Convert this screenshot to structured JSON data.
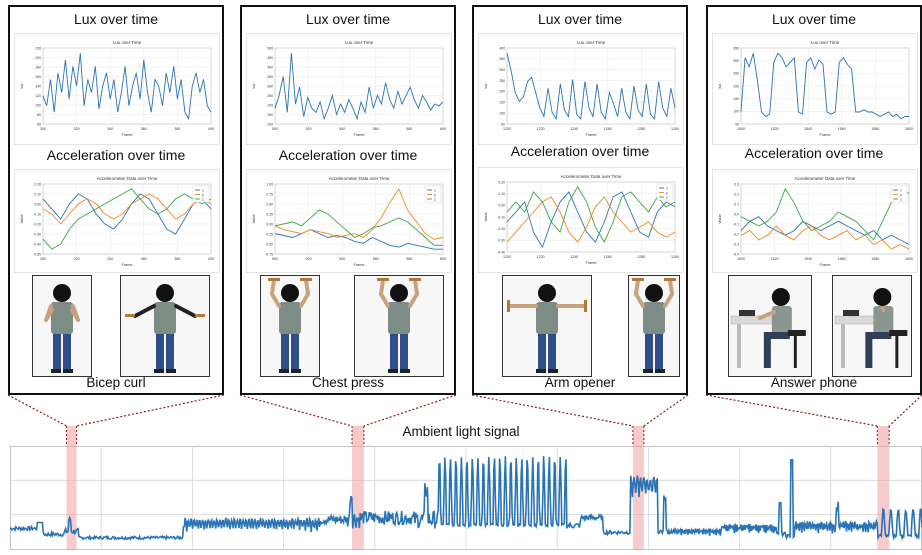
{
  "colors": {
    "line": "#2a74b5",
    "acc_x": "#2a74b5",
    "acc_y": "#f08a24",
    "acc_z": "#3aa64a",
    "highlight": "#f3a2a2",
    "connector": "#8b1a1a"
  },
  "panels": [
    {
      "lux_title": "Lux over time",
      "acc_title": "Acceleration over time",
      "label": "Bicep curl",
      "lux_chart": {
        "subtitle": "Lux over Time",
        "xlabel": "Frame",
        "ylabel": "lux",
        "xticks": [
          "300",
          "320",
          "340",
          "360",
          "380",
          "400"
        ],
        "yticks": [
          "220",
          "200",
          "180",
          "160",
          "140",
          "120",
          "100",
          "80",
          "60"
        ],
        "values": [
          115,
          100,
          140,
          90,
          150,
          120,
          170,
          110,
          160,
          130,
          180,
          100,
          140,
          120,
          160,
          95,
          130,
          150,
          110,
          140,
          90,
          120,
          160,
          100,
          130,
          150,
          110,
          170,
          120,
          90,
          140,
          130,
          100,
          150,
          120,
          160,
          110,
          140,
          90,
          80,
          130,
          150,
          120,
          140,
          100,
          90
        ]
      },
      "acc_chart": {
        "subtitle": "Accelerometer Data over Time",
        "xlabel": "Frame",
        "ylabel": "Value",
        "legend": [
          "x",
          "y",
          "z"
        ],
        "xticks": [
          "300",
          "320",
          "340",
          "360",
          "380",
          "400"
        ],
        "yticks": [
          "0.20",
          "0.10",
          "0.00",
          "-0.10",
          "-0.20",
          "-0.30",
          "-0.40",
          "-0.50"
        ],
        "x": [
          0.1,
          0.0,
          -0.1,
          0.05,
          0.15,
          0.1,
          -0.05,
          -0.15,
          -0.2,
          -0.1,
          0.05,
          0.15,
          0.1,
          -0.05,
          -0.2,
          -0.25,
          -0.1,
          0.05,
          0.1,
          0.0
        ],
        "y": [
          0.0,
          -0.05,
          -0.15,
          -0.05,
          0.05,
          0.1,
          0.05,
          -0.05,
          -0.1,
          -0.05,
          0.05,
          0.1,
          0.15,
          0.1,
          0.0,
          -0.1,
          -0.05,
          0.05,
          0.1,
          0.05
        ],
        "z": [
          -0.3,
          -0.4,
          -0.35,
          -0.2,
          -0.1,
          -0.05,
          0.0,
          0.05,
          0.1,
          0.15,
          0.2,
          0.1,
          0.0,
          -0.05,
          0.0,
          0.1,
          0.15,
          0.1,
          0.05,
          0.1
        ]
      }
    },
    {
      "lux_title": "Lux over time",
      "acc_title": "Acceleration over time",
      "label": "Chest press",
      "lux_chart": {
        "subtitle": "Lux over Time",
        "xlabel": "Frame",
        "ylabel": "lux",
        "xticks": [
          "500",
          "520",
          "540",
          "560",
          "580",
          "600"
        ],
        "yticks": [
          "500",
          "450",
          "400",
          "350",
          "300",
          "250",
          "200",
          "150",
          "100"
        ],
        "values": [
          200,
          260,
          350,
          180,
          460,
          220,
          300,
          160,
          250,
          200,
          180,
          230,
          150,
          200,
          260,
          170,
          220,
          180,
          240,
          200,
          150,
          230,
          180,
          300,
          200,
          260,
          220,
          320,
          240,
          200,
          280,
          220,
          260,
          300,
          240,
          200,
          260,
          230,
          190,
          220,
          210,
          230
        ]
      },
      "acc_chart": {
        "subtitle": "Accelerometer Data over Time",
        "xlabel": "Frame",
        "ylabel": "Value",
        "legend": [
          "x",
          "y",
          "z"
        ],
        "xticks": [
          "500",
          "520",
          "540",
          "560",
          "580",
          "600"
        ],
        "yticks": [
          "1.00",
          "0.75",
          "0.50",
          "0.25",
          "0.00",
          "-0.25",
          "-0.50",
          "-0.75"
        ],
        "x": [
          -0.2,
          -0.25,
          -0.3,
          -0.2,
          -0.1,
          -0.2,
          -0.3,
          -0.25,
          -0.3,
          -0.4,
          -0.45,
          -0.3,
          -0.4,
          -0.5,
          -0.55,
          -0.45,
          -0.5,
          -0.55,
          -0.6,
          -0.6
        ],
        "y": [
          0.0,
          -0.1,
          -0.15,
          -0.2,
          -0.1,
          -0.15,
          -0.2,
          -0.3,
          -0.25,
          -0.2,
          -0.3,
          -0.1,
          0.2,
          0.6,
          0.95,
          0.4,
          0.1,
          -0.2,
          -0.35,
          -0.3
        ],
        "z": [
          0.0,
          0.05,
          0.1,
          0.0,
          0.2,
          0.4,
          0.3,
          0.1,
          -0.1,
          -0.3,
          -0.2,
          -0.05,
          0.0,
          0.1,
          0.2,
          0.1,
          -0.1,
          -0.3,
          -0.5,
          -0.5
        ]
      }
    },
    {
      "lux_title": "Lux over time",
      "acc_title": "Acceleration over time",
      "label": "Arm opener",
      "lux_chart": {
        "subtitle": "Lux over Time",
        "xlabel": "Frame",
        "ylabel": "lux",
        "xticks": [
          "1200",
          "1220",
          "1240",
          "1260",
          "1280",
          "1300"
        ],
        "yticks": [
          "400",
          "350",
          "300",
          "250",
          "200",
          "150",
          "100",
          "50"
        ],
        "values": [
          380,
          300,
          200,
          160,
          180,
          250,
          270,
          200,
          130,
          90,
          220,
          110,
          80,
          240,
          120,
          90,
          260,
          100,
          80,
          250,
          130,
          90,
          240,
          110,
          80,
          200,
          150,
          90,
          220,
          110,
          80,
          230,
          120,
          90,
          240,
          100,
          80,
          250,
          130,
          90,
          220,
          130
        ]
      },
      "acc_chart": {
        "subtitle": "Accelerometer Data over Time",
        "xlabel": "Frame",
        "ylabel": "Value",
        "legend": [
          "x",
          "y",
          "z"
        ],
        "xticks": [
          "1200",
          "1220",
          "1240",
          "1260",
          "1280",
          "1300"
        ],
        "yticks": [
          "0.20",
          "0.10",
          "0.00",
          "-0.10",
          "-0.20",
          "-0.30",
          "-0.40"
        ],
        "x": [
          -0.1,
          0.0,
          0.1,
          -0.2,
          -0.35,
          -0.1,
          0.1,
          0.2,
          0.0,
          -0.2,
          -0.3,
          -0.1,
          0.15,
          0.2,
          0.0,
          -0.2,
          -0.25,
          0.0,
          0.1,
          0.05
        ],
        "y": [
          -0.3,
          -0.2,
          -0.1,
          0.0,
          0.1,
          0.15,
          0.0,
          -0.2,
          -0.3,
          -0.15,
          0.05,
          0.15,
          0.0,
          -0.1,
          -0.2,
          -0.15,
          -0.1,
          -0.2,
          -0.25,
          -0.2
        ],
        "z": [
          0.0,
          0.1,
          0.0,
          0.2,
          0.1,
          -0.1,
          -0.2,
          0.1,
          0.25,
          0.1,
          -0.15,
          -0.3,
          -0.1,
          0.15,
          0.2,
          0.1,
          0.0,
          0.15,
          0.05,
          0.1
        ]
      }
    },
    {
      "lux_title": "Lux over time",
      "acc_title": "Acceleration over time",
      "label": "Answer phone",
      "lux_chart": {
        "subtitle": "Lux over Time",
        "xlabel": "Frame",
        "ylabel": "lux",
        "xticks": [
          "1500",
          "1520",
          "1540",
          "1560",
          "1580",
          "1600"
        ],
        "yticks": [
          "350",
          "300",
          "250",
          "200",
          "150",
          "100",
          "50"
        ],
        "values": [
          60,
          300,
          260,
          320,
          200,
          60,
          40,
          50,
          280,
          320,
          300,
          260,
          280,
          300,
          60,
          50,
          280,
          300,
          250,
          290,
          270,
          60,
          50,
          60,
          280,
          300,
          270,
          250,
          60,
          60,
          70,
          60,
          60,
          50,
          40,
          50,
          60,
          40,
          50,
          30,
          40,
          40
        ]
      },
      "acc_chart": {
        "subtitle": "Accelerometer Data over Time",
        "xlabel": "Frame",
        "ylabel": "Value",
        "legend": [
          "x",
          "y",
          "z"
        ],
        "xticks": [
          "1500",
          "1520",
          "1540",
          "1560",
          "1580",
          "1600"
        ],
        "yticks": [
          "0.3",
          "0.2",
          "0.1",
          "0.0",
          "-0.1",
          "-0.2",
          "-0.3",
          "-0.4"
        ],
        "x": [
          -0.1,
          0.0,
          0.05,
          -0.05,
          -0.1,
          -0.15,
          -0.1,
          0.0,
          -0.05,
          -0.1,
          -0.05,
          0.0,
          -0.05,
          -0.1,
          -0.15,
          -0.1,
          -0.2,
          -0.15,
          -0.2,
          -0.25
        ],
        "y": [
          -0.15,
          -0.1,
          -0.2,
          -0.15,
          -0.05,
          -0.15,
          -0.2,
          -0.1,
          -0.05,
          -0.15,
          -0.2,
          -0.15,
          -0.1,
          -0.2,
          -0.15,
          -0.25,
          -0.2,
          -0.3,
          -0.25,
          -0.3
        ],
        "z": [
          0.05,
          0.0,
          -0.05,
          0.0,
          0.1,
          0.35,
          0.2,
          0.0,
          -0.1,
          -0.05,
          0.0,
          0.1,
          0.05,
          0.0,
          -0.1,
          -0.2,
          0.0,
          0.2,
          0.35,
          0.3
        ]
      }
    }
  ],
  "ambient": {
    "title": "Ambient light signal",
    "y_range": [
      0,
      100
    ],
    "highlights": [
      [
        6.2,
        7.3
      ],
      [
        37.5,
        38.8
      ],
      [
        68.3,
        69.5
      ],
      [
        95.1,
        96.4
      ]
    ]
  }
}
